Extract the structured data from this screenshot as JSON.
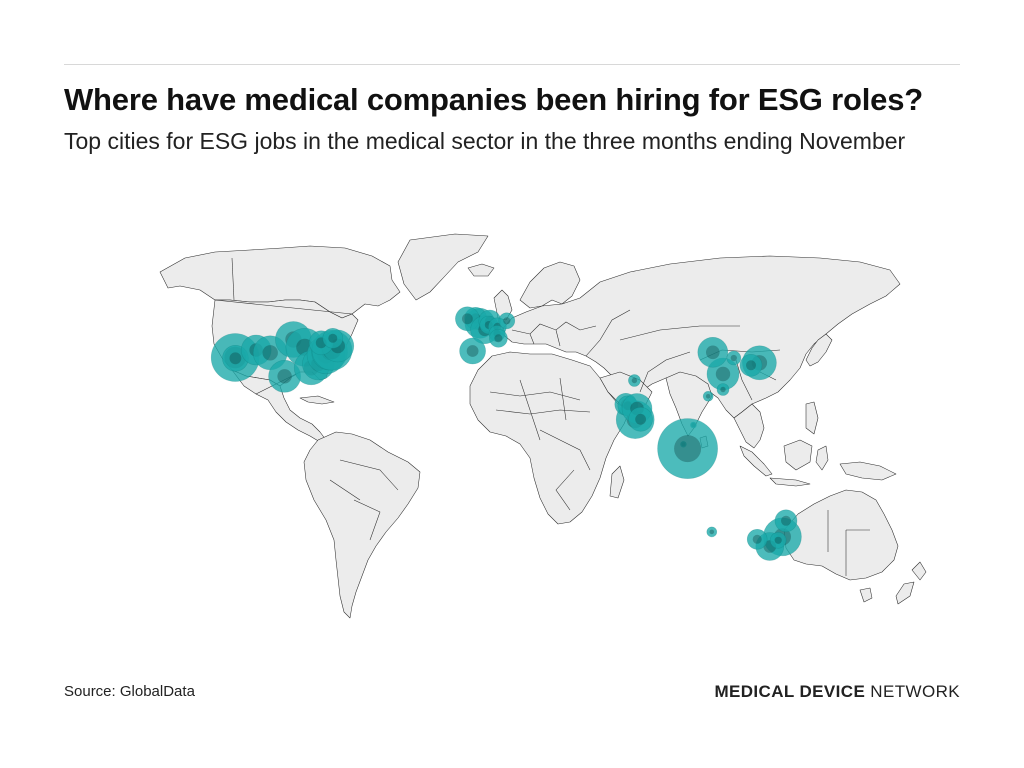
{
  "header": {
    "title": "Where have medical companies been hiring for ESG roles?",
    "subtitle": "Top cities for ESG jobs in the medical sector in the three months ending November"
  },
  "footer": {
    "source": "Source: GlobalData",
    "brand_strong": "MEDICAL DEVICE",
    "brand_light": " NETWORK"
  },
  "colors": {
    "bubble": "#1aa9a9",
    "land": "#ececec",
    "border": "#2b2b2b"
  },
  "map_data": {
    "type": "proportional-symbol-map",
    "projection": "equirectangular",
    "cities": [
      {
        "lon": -122.4,
        "lat": 37.8,
        "r": 24
      },
      {
        "lon": -122.3,
        "lat": 37.5,
        "r": 13
      },
      {
        "lon": -111.9,
        "lat": 40.8,
        "r": 15
      },
      {
        "lon": -104.9,
        "lat": 39.7,
        "r": 17
      },
      {
        "lon": -97.7,
        "lat": 30.3,
        "r": 16
      },
      {
        "lon": -93.3,
        "lat": 45.0,
        "r": 18
      },
      {
        "lon": -87.6,
        "lat": 41.9,
        "r": 19
      },
      {
        "lon": -84.4,
        "lat": 33.7,
        "r": 17
      },
      {
        "lon": -80.8,
        "lat": 35.2,
        "r": 16
      },
      {
        "lon": -77.0,
        "lat": 38.9,
        "r": 19
      },
      {
        "lon": -75.2,
        "lat": 40.0,
        "r": 18
      },
      {
        "lon": -74.0,
        "lat": 40.7,
        "r": 20
      },
      {
        "lon": -71.1,
        "lat": 42.4,
        "r": 16
      },
      {
        "lon": -79.4,
        "lat": 43.7,
        "r": 12
      },
      {
        "lon": -73.6,
        "lat": 45.5,
        "r": 10
      },
      {
        "lon": -0.1,
        "lat": 51.5,
        "r": 15
      },
      {
        "lon": -2.2,
        "lat": 53.5,
        "r": 11
      },
      {
        "lon": -6.3,
        "lat": 53.3,
        "r": 12
      },
      {
        "lon": 2.3,
        "lat": 48.9,
        "r": 14
      },
      {
        "lon": 4.9,
        "lat": 52.4,
        "r": 11
      },
      {
        "lon": 4.4,
        "lat": 50.8,
        "r": 9
      },
      {
        "lon": 8.7,
        "lat": 50.1,
        "r": 9
      },
      {
        "lon": 8.5,
        "lat": 47.4,
        "r": 8
      },
      {
        "lon": 13.4,
        "lat": 52.5,
        "r": 8
      },
      {
        "lon": -3.7,
        "lat": 40.4,
        "r": 13
      },
      {
        "lon": 9.2,
        "lat": 45.5,
        "r": 9
      },
      {
        "lon": 121.5,
        "lat": 31.2,
        "r": 16
      },
      {
        "lon": 116.4,
        "lat": 39.9,
        "r": 15
      },
      {
        "lon": 126.9,
        "lat": 37.6,
        "r": 7
      },
      {
        "lon": 139.7,
        "lat": 35.7,
        "r": 17
      },
      {
        "lon": 135.5,
        "lat": 34.7,
        "r": 11
      },
      {
        "lon": 114.1,
        "lat": 22.3,
        "r": 5
      },
      {
        "lon": 121.5,
        "lat": 25.0,
        "r": 6
      },
      {
        "lon": 106.7,
        "lat": 10.8,
        "r": 3
      },
      {
        "lon": 101.7,
        "lat": 3.1,
        "r": 3
      },
      {
        "lon": 77.6,
        "lat": 12.97,
        "r": 19
      },
      {
        "lon": 72.9,
        "lat": 19.1,
        "r": 11
      },
      {
        "lon": 73.9,
        "lat": 18.5,
        "r": 10
      },
      {
        "lon": 78.5,
        "lat": 17.4,
        "r": 15
      },
      {
        "lon": 80.3,
        "lat": 13.1,
        "r": 12
      },
      {
        "lon": 77.2,
        "lat": 28.6,
        "r": 6
      },
      {
        "lon": 103.8,
        "lat": 1.35,
        "r": 30
      },
      {
        "lon": 151.2,
        "lat": -33.9,
        "r": 19
      },
      {
        "lon": 153.0,
        "lat": -27.5,
        "r": 11
      },
      {
        "lon": 144.9,
        "lat": -37.8,
        "r": 14
      },
      {
        "lon": 138.6,
        "lat": -34.9,
        "r": 10
      },
      {
        "lon": 115.9,
        "lat": -31.95,
        "r": 5
      },
      {
        "lon": 149.1,
        "lat": -35.3,
        "r": 8
      }
    ]
  }
}
